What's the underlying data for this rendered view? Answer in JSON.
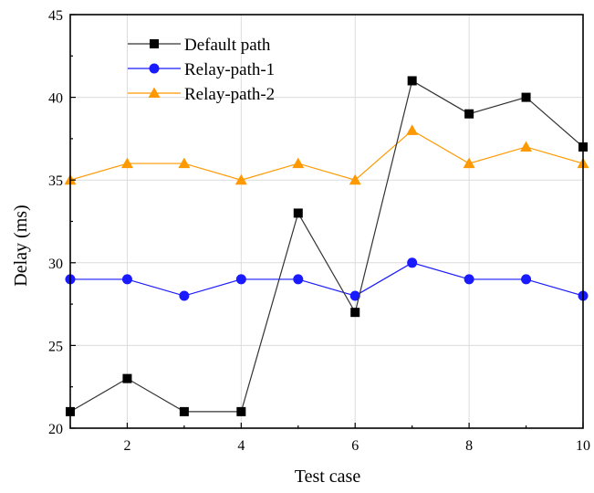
{
  "chart_data": {
    "type": "line",
    "title": "",
    "xlabel": "Test case",
    "ylabel": "Delay (ms)",
    "xlim": [
      1,
      10
    ],
    "ylim": [
      20,
      45
    ],
    "xticks": [
      2,
      4,
      6,
      8,
      10
    ],
    "yticks": [
      20,
      25,
      30,
      35,
      40,
      45
    ],
    "grid": true,
    "legend_position": "top-left",
    "x": [
      1,
      2,
      3,
      4,
      5,
      6,
      7,
      8,
      9,
      10
    ],
    "series": [
      {
        "name": "Default path",
        "values": [
          21,
          23,
          21,
          21,
          33,
          27,
          41,
          39,
          40,
          37
        ],
        "color": "#000000",
        "line_color": "#333333",
        "marker": "square"
      },
      {
        "name": "Relay-path-1",
        "values": [
          29,
          29,
          28,
          29,
          29,
          28,
          30,
          29,
          29,
          28
        ],
        "color": "#1a1aff",
        "line_color": "#1a1aff",
        "marker": "circle"
      },
      {
        "name": "Relay-path-2",
        "values": [
          35,
          36,
          36,
          35,
          36,
          35,
          38,
          36,
          37,
          36
        ],
        "color": "#ff9900",
        "line_color": "#ff9900",
        "marker": "triangle"
      }
    ]
  }
}
